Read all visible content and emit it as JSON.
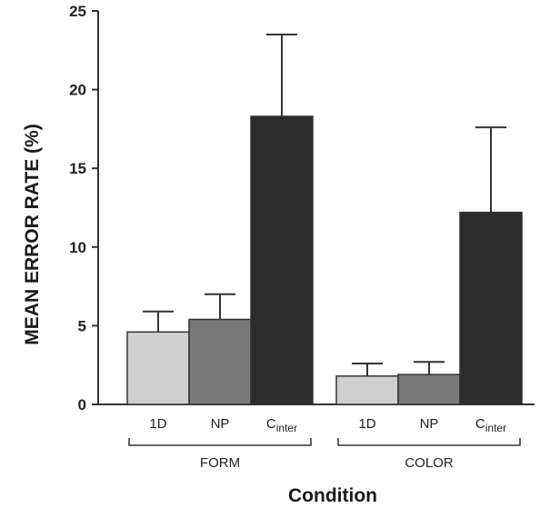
{
  "chart_data": {
    "type": "bar",
    "title": "",
    "ylabel": "MEAN ERROR RATE (%)",
    "xlabel": "Condition",
    "ylim": [
      0,
      25
    ],
    "yticks": [
      0,
      5,
      10,
      15,
      20,
      25
    ],
    "groups": [
      {
        "name": "FORM",
        "bars": [
          {
            "label": "1D",
            "label_main": "1D",
            "label_sub": "",
            "value": 4.6,
            "error": 1.3,
            "color": "#cfcfcf"
          },
          {
            "label": "NP",
            "label_main": "NP",
            "label_sub": "",
            "value": 5.4,
            "error": 1.6,
            "color": "#7a7a7a"
          },
          {
            "label": "Cinter",
            "label_main": "C",
            "label_sub": "inter",
            "value": 18.3,
            "error": 5.2,
            "color": "#2b2b2b"
          }
        ]
      },
      {
        "name": "COLOR",
        "bars": [
          {
            "label": "1D",
            "label_main": "1D",
            "label_sub": "",
            "value": 1.8,
            "error": 0.8,
            "color": "#cfcfcf"
          },
          {
            "label": "NP",
            "label_main": "NP",
            "label_sub": "",
            "value": 1.9,
            "error": 0.8,
            "color": "#7a7a7a"
          },
          {
            "label": "Cinter",
            "label_main": "C",
            "label_sub": "inter",
            "value": 12.2,
            "error": 5.4,
            "color": "#2b2b2b"
          }
        ]
      }
    ],
    "grid": false,
    "legend": "none"
  }
}
